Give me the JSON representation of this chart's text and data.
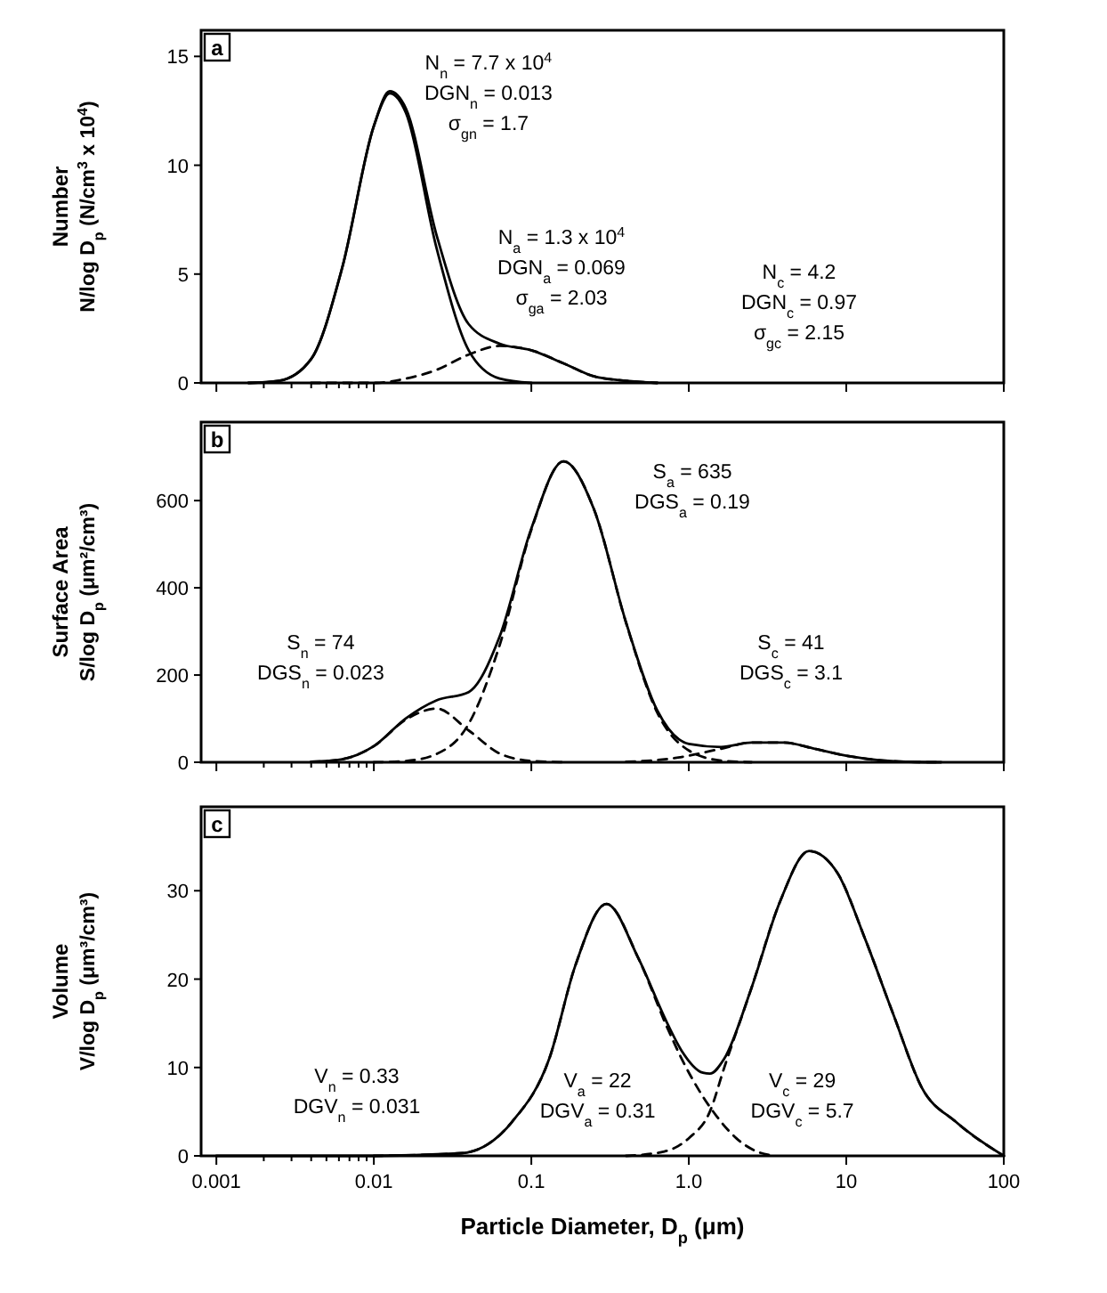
{
  "chart_data": [
    {
      "type": "line",
      "title": "a",
      "ylabel": "Number\nN/log D$_{p}$ (N/cm$^{3}$ x 10$^{4}$)",
      "log": "x",
      "tick_labels": "y",
      "xlim": [
        0.0008,
        100
      ],
      "xticks": [
        {
          "value": 0.001,
          "label": null
        },
        {
          "value": 0.002,
          "label": null
        },
        {
          "value": 0.003,
          "label": null
        },
        {
          "value": 0.004,
          "label": null
        },
        {
          "value": 0.005,
          "label": null
        },
        {
          "value": 0.006,
          "label": null
        },
        {
          "value": 0.007,
          "label": null
        },
        {
          "value": 0.008,
          "label": null
        },
        {
          "value": 0.009,
          "label": null
        },
        {
          "value": 0.01,
          "label": null
        },
        {
          "value": 0.1,
          "label": null
        },
        {
          "value": 1,
          "label": null
        },
        {
          "value": 10,
          "label": null
        },
        {
          "value": 100,
          "label": null
        }
      ],
      "ylim": [
        0,
        16.2
      ],
      "yticks": [
        0,
        5,
        10,
        15
      ],
      "series": [
        {
          "color": "#000000",
          "line_style": "solid",
          "x": [
            0.0016,
            0.0025,
            0.004,
            0.0063,
            0.01,
            0.0126,
            0.016,
            0.025,
            0.04,
            0.063,
            0.1,
            0.16,
            0.25,
            0.4,
            0.63
          ],
          "values": [
            0,
            0.1,
            1.1,
            5.3,
            11.8,
            13.4,
            12.6,
            6.8,
            2.7,
            1.8,
            1.5,
            0.9,
            0.3,
            0.1,
            0
          ]
        },
        {
          "color": "#000000",
          "line_style": "solid",
          "x": [
            0.0016,
            0.0025,
            0.004,
            0.0063,
            0.01,
            0.0126,
            0.016,
            0.025,
            0.04,
            0.063,
            0.1
          ],
          "values": [
            0,
            0.1,
            1.1,
            5.3,
            11.8,
            13.3,
            12.4,
            6.2,
            1.5,
            0.2,
            0
          ]
        },
        {
          "color": "#000000",
          "line_style": "dashed",
          "x": [
            0.004,
            0.0063,
            0.01,
            0.016,
            0.025,
            0.04,
            0.063,
            0.1,
            0.16,
            0.25,
            0.4,
            0.63
          ],
          "values": [
            0,
            0,
            0,
            0.2,
            0.6,
            1.3,
            1.7,
            1.5,
            0.9,
            0.3,
            0.1,
            0
          ]
        }
      ],
      "annotations": [
        "N$_{n}$ = 7.7 x 10$^{4}$\nDGN$_{n}$ = 0.013\nσ$_{gn}$ = 1.7",
        "N$_{a}$ = 1.3 x 10$^{4}$\nDGN$_{a}$ = 0.069\nσ$_{ga}$ = 2.03",
        "N$_{c}$ = 4.2\nDGN$_{c}$ = 0.97\nσ$_{gc}$ = 2.15"
      ]
    },
    {
      "type": "line",
      "title": "b",
      "ylabel": "Surface Area\nS/log D$_{p}$ (μm²/cm³)",
      "log": "x",
      "tick_labels": "y",
      "xlim": [
        0.0008,
        100
      ],
      "xticks": [
        {
          "value": 0.001,
          "label": null
        },
        {
          "value": 0.002,
          "label": null
        },
        {
          "value": 0.003,
          "label": null
        },
        {
          "value": 0.004,
          "label": null
        },
        {
          "value": 0.005,
          "label": null
        },
        {
          "value": 0.006,
          "label": null
        },
        {
          "value": 0.007,
          "label": null
        },
        {
          "value": 0.008,
          "label": null
        },
        {
          "value": 0.009,
          "label": null
        },
        {
          "value": 0.01,
          "label": null
        },
        {
          "value": 0.1,
          "label": null
        },
        {
          "value": 1,
          "label": null
        },
        {
          "value": 10,
          "label": null
        },
        {
          "value": 100,
          "label": null
        }
      ],
      "ylim": [
        0,
        780
      ],
      "yticks": [
        0,
        200,
        400,
        600
      ],
      "series": [
        {
          "color": "#000000",
          "line_style": "solid",
          "x": [
            0.004,
            0.0063,
            0.01,
            0.016,
            0.025,
            0.04,
            0.063,
            0.1,
            0.16,
            0.25,
            0.4,
            0.63,
            1,
            1.6,
            2.5,
            4,
            6.3,
            10,
            16,
            25,
            40
          ],
          "values": [
            1,
            7,
            37,
            101,
            142,
            161,
            289,
            536,
            690,
            580,
            320,
            119,
            42,
            35,
            45,
            45,
            31,
            15,
            5,
            1,
            0
          ]
        },
        {
          "color": "#000000",
          "line_style": "dashed",
          "x": [
            0.004,
            0.0063,
            0.01,
            0.016,
            0.025,
            0.04,
            0.063,
            0.1,
            0.16
          ],
          "values": [
            1,
            7,
            37,
            98,
            123,
            73,
            20,
            3,
            0
          ]
        },
        {
          "color": "#000000",
          "line_style": "dashed",
          "x": [
            0.01,
            0.016,
            0.025,
            0.04,
            0.063,
            0.1,
            0.16,
            0.25,
            0.4,
            0.63,
            1,
            1.6,
            2.5
          ],
          "values": [
            0,
            3,
            19,
            88,
            269,
            533,
            690,
            580,
            319,
            114,
            27,
            4,
            0
          ]
        },
        {
          "color": "#000000",
          "line_style": "dashed",
          "x": [
            0.4,
            0.63,
            1,
            1.6,
            2.5,
            4,
            6.3,
            10,
            16,
            25,
            40
          ],
          "values": [
            1,
            5,
            15,
            31,
            45,
            45,
            31,
            15,
            5,
            1,
            0
          ]
        }
      ],
      "annotations": [
        "S$_{a}$ = 635\nDGS$_{a}$ = 0.19",
        "S$_{n}$ = 74\nDGS$_{n}$ = 0.023",
        "S$_{c}$ = 41\nDGS$_{c}$ = 3.1"
      ]
    },
    {
      "type": "line",
      "title": "c",
      "ylabel": "Volume\nV/log D$_{p}$ (μm³/cm³)",
      "xlabel": "Particle Diameter, D$_{p}$ (μm)",
      "log": "x",
      "xlim": [
        0.0008,
        100
      ],
      "xticks": [
        0.001,
        {
          "value": 0.002,
          "label": null
        },
        {
          "value": 0.003,
          "label": null
        },
        {
          "value": 0.004,
          "label": null
        },
        {
          "value": 0.005,
          "label": null
        },
        {
          "value": 0.006,
          "label": null
        },
        {
          "value": 0.007,
          "label": null
        },
        {
          "value": 0.008,
          "label": null
        },
        {
          "value": 0.009,
          "label": null
        },
        0.01,
        0.1,
        {
          "value": 1,
          "label": "1.0"
        },
        10,
        100
      ],
      "ylim": [
        0,
        39.5
      ],
      "yticks": [
        0,
        10,
        20,
        30
      ],
      "series": [
        {
          "color": "#000000",
          "line_style": "solid",
          "x": [
            0.001,
            0.01,
            0.036,
            0.075,
            0.13,
            0.19,
            0.3,
            0.48,
            0.73,
            0.9,
            1.23,
            1.36,
            1.68,
            2.5,
            3.8,
            5.8,
            8.8,
            13,
            20,
            30,
            50,
            100
          ],
          "values": [
            0,
            0,
            0.3,
            3.8,
            11,
            21.5,
            28.5,
            22.3,
            15,
            11.9,
            9.4,
            9.3,
            11,
            19,
            28.8,
            34.5,
            32,
            24.8,
            15.9,
            7.8,
            3.8,
            0
          ]
        },
        {
          "color": "#000000",
          "line_style": "dashed",
          "x": [
            0.01,
            0.036,
            0.075,
            0.13,
            0.19,
            0.3,
            0.48,
            0.73,
            0.9,
            1.2,
            1.5,
            2,
            2.7,
            3.5
          ],
          "values": [
            0,
            0.3,
            3.8,
            11,
            21.5,
            28.5,
            22.3,
            14.5,
            11,
            7,
            4.5,
            2,
            0.5,
            0
          ]
        },
        {
          "color": "#000000",
          "line_style": "dashed",
          "x": [
            0.4,
            0.7,
            1,
            1.36,
            1.68,
            2.5,
            3.8,
            5.8,
            8.8,
            13,
            20,
            30,
            50,
            100
          ],
          "values": [
            0,
            0.5,
            2,
            5,
            10,
            19,
            28.8,
            34.5,
            32,
            24.8,
            15.9,
            7.8,
            3.8,
            0
          ]
        }
      ],
      "annotations": [
        "V$_{n}$ = 0.33\nDGV$_{n}$ = 0.031",
        "V$_{a}$ = 22\nDGV$_{a}$ = 0.31",
        "V$_{c}$ = 29\nDGV$_{c}$ = 5.7"
      ]
    }
  ]
}
